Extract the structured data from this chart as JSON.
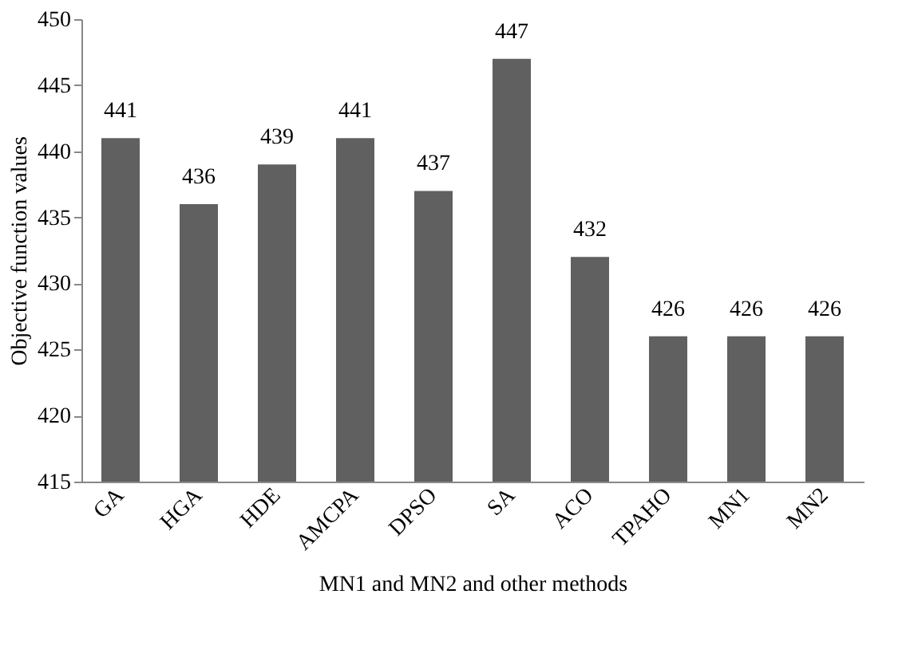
{
  "chart_data": {
    "type": "bar",
    "xlabel": "MN1 and MN2 and other methods",
    "ylabel": "Objective function values",
    "categories": [
      "GA",
      "HGA",
      "HDE",
      "AMCPA",
      "DPSO",
      "SA",
      "ACO",
      "TPAHO",
      "MN1",
      "MN2"
    ],
    "values": [
      441,
      436,
      439,
      441,
      437,
      447,
      432,
      426,
      426,
      426
    ],
    "color": "#606060",
    "ylim": [
      415,
      450
    ],
    "yticks": [
      415,
      420,
      425,
      430,
      435,
      440,
      445,
      450
    ],
    "data_labels": true,
    "grid": false
  }
}
